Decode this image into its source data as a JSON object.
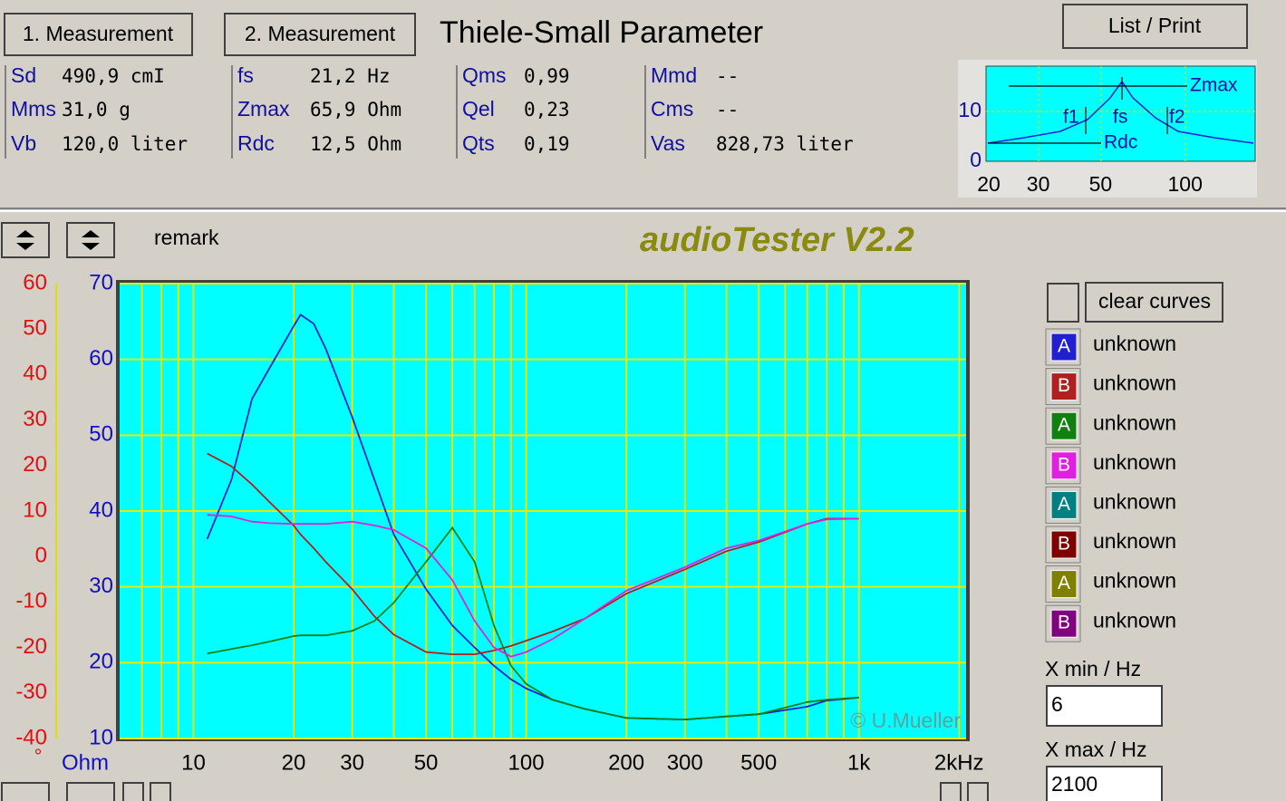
{
  "buttons": {
    "measurement1": "1. Measurement",
    "measurement2": "2. Measurement",
    "list_print": "List / Print",
    "clear_curves": "clear curves"
  },
  "header": {
    "title": "Thiele-Small Parameter"
  },
  "parameters": [
    [
      {
        "name": "Sd",
        "value": "490,9 cmI"
      },
      {
        "name": "Mms",
        "value": "31,0 g"
      },
      {
        "name": "Vb",
        "value": "120,0 liter"
      }
    ],
    [
      {
        "name": "fs",
        "value": "21,2 Hz"
      },
      {
        "name": "Zmax",
        "value": "65,9 Ohm"
      },
      {
        "name": "Rdc",
        "value": "12,5 Ohm"
      }
    ],
    [
      {
        "name": "Qms",
        "value": "0,99"
      },
      {
        "name": "Qel",
        "value": "0,23"
      },
      {
        "name": "Qts",
        "value": "0,19"
      }
    ],
    [
      {
        "name": "Mmd",
        "value": "--"
      },
      {
        "name": "Cms",
        "value": "--"
      },
      {
        "name": "Vas",
        "value": "828,73 liter"
      }
    ]
  ],
  "thumbnail": {
    "labels": [
      "Zmax",
      "f1",
      "fs",
      "f2",
      "Rdc"
    ],
    "yticks": [
      10,
      0
    ],
    "xticks": [
      20,
      30,
      50,
      100
    ]
  },
  "remark": "remark",
  "app_title": "audioTester V2.2",
  "chart_data": {
    "type": "line",
    "x": [
      11,
      13,
      15,
      17,
      20,
      21,
      23,
      25,
      30,
      35,
      40,
      50,
      60,
      70,
      80,
      90,
      100,
      120,
      150,
      200,
      300,
      400,
      500,
      700,
      800,
      1000
    ],
    "xlim": [
      6,
      2100
    ],
    "log_x": true,
    "xticks": [
      10,
      20,
      30,
      50,
      100,
      200,
      300,
      500,
      {
        "value": 1000,
        "label": "1k"
      },
      {
        "value": 2000,
        "label": "2kHz"
      }
    ],
    "xgrid": [
      7,
      8,
      9,
      10,
      20,
      30,
      40,
      50,
      60,
      70,
      80,
      90,
      100,
      200,
      300,
      400,
      500,
      600,
      700,
      800,
      900,
      1000,
      2000
    ],
    "ylim": [
      10,
      70
    ],
    "yticks": [
      10,
      20,
      30,
      40,
      50,
      60,
      70
    ],
    "y_label": "Ohm",
    "y2lim": [
      -40,
      60
    ],
    "y2ticks": [
      -40,
      -30,
      -20,
      -10,
      0,
      10,
      20,
      30,
      40,
      50,
      60
    ],
    "y2_label": "°",
    "grid": true,
    "annotation": "© U.Mueller",
    "series": [
      {
        "name": "unknown",
        "letter": "A",
        "color": "#2020d0",
        "values": [
          36.3,
          44.1,
          54.8,
          59.0,
          64.4,
          65.9,
          64.7,
          61.4,
          52.4,
          44.1,
          36.9,
          29.7,
          24.9,
          22.0,
          19.6,
          17.8,
          16.6,
          15.1,
          13.9,
          12.7,
          12.5,
          12.9,
          13.2,
          14.2,
          15.0,
          15.4
        ]
      },
      {
        "name": "unknown",
        "letter": "B",
        "color": "#b02020",
        "values": [
          47.6,
          45.9,
          43.5,
          41.1,
          38.1,
          36.9,
          35.1,
          33.3,
          29.7,
          26.1,
          23.7,
          21.4,
          21.1,
          21.1,
          21.6,
          22.2,
          22.9,
          24.1,
          25.8,
          29.1,
          32.3,
          34.7,
          35.9,
          38.3,
          39.0,
          39.0
        ]
      },
      {
        "name": "unknown",
        "letter": "A",
        "color": "#108010",
        "values": [
          21.2,
          21.8,
          22.3,
          22.8,
          23.5,
          23.6,
          23.6,
          23.6,
          24.2,
          25.5,
          27.9,
          33.3,
          37.8,
          33.3,
          24.9,
          19.6,
          17.2,
          15.1,
          13.9,
          12.7,
          12.5,
          12.9,
          13.2,
          14.8,
          15.1,
          15.4
        ]
      },
      {
        "name": "unknown",
        "letter": "B",
        "color": "#e020e0",
        "values": [
          39.5,
          39.3,
          38.6,
          38.4,
          38.3,
          38.3,
          38.3,
          38.3,
          38.6,
          38.1,
          37.5,
          35.1,
          30.9,
          25.5,
          22.0,
          20.8,
          21.4,
          23.1,
          25.8,
          29.5,
          32.6,
          35.1,
          36.1,
          38.3,
          38.9,
          39.0
        ]
      }
    ]
  },
  "legend_extra": [
    {
      "letter": "A",
      "name": "unknown",
      "color": "#008080"
    },
    {
      "letter": "B",
      "name": "unknown",
      "color": "#800000"
    },
    {
      "letter": "A",
      "name": "unknown",
      "color": "#808000"
    },
    {
      "letter": "B",
      "name": "unknown",
      "color": "#800080"
    }
  ],
  "controls": {
    "x_min_label": "X min / Hz",
    "x_max_label": "X max / Hz"
  }
}
